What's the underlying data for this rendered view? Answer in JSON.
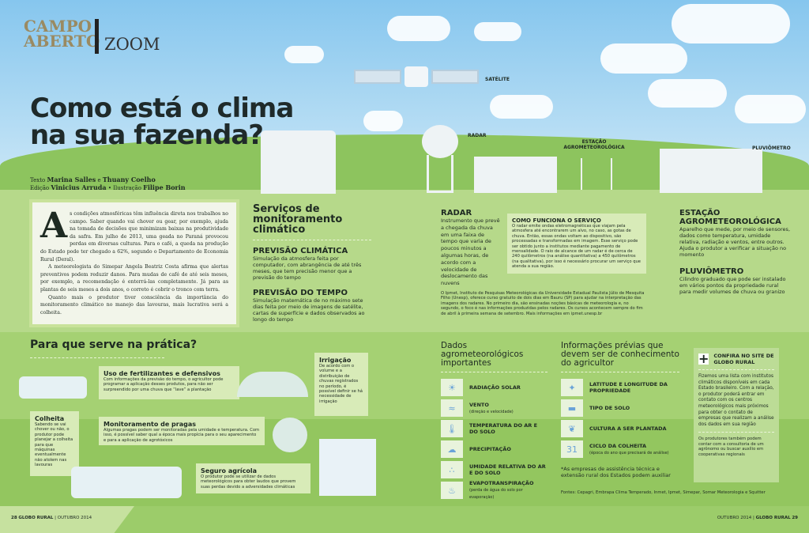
{
  "masthead": {
    "section_line1": "CAMPO",
    "section_line2": "ABERTO",
    "subsection": "ZOOM"
  },
  "headline": {
    "line1": "Como está o clima",
    "line2": "na sua fazenda?"
  },
  "credits": {
    "text_label": "Texto",
    "authors": "Marina Salles",
    "and": "e",
    "author2": "Thuany Coelho",
    "edit_label": "Edição",
    "editor": "Vinicius Arruda",
    "illus_label": "Ilustração",
    "illustrator": "Filipe Borin"
  },
  "illustration_labels": {
    "satellite": "SATÉLITE",
    "radar": "RADAR",
    "station": "ESTAÇÃO AGROMETEOROLÓGICA",
    "rain_gauge": "PLUVIÔMETRO"
  },
  "article": {
    "drop_cap": "A",
    "p1": "s condições atmosféricas têm influência direta nos trabalhos no campo. Saber quando vai chover ou gear, por exemplo, ajuda na tomada de decisões que minimizam baixas na produtividade da safra. Em julho de 2013, uma geada no Paraná provocou perdas em diversas culturas. Para o café, a queda na produção do Estado pode ter chegado a 62%, segundo o Departamento de Economia Rural (Deral).",
    "p2": "A meteorologista do Simepar Angela Beatriz Costa afirma que alertas preventivos podem reduzir danos. Para mudas de café de até seis meses, por exemplo, a recomendação é enterrá-las completamente. Já para as plantas de seis meses a dois anos, o correto é cobrir o tronco com terra.",
    "p3": "Quanto mais o produtor tiver consciência da importância do monitoramento climático no manejo das lavouras, mais lucrativa será a colheita."
  },
  "services": {
    "title": "Serviços de monitoramento climático",
    "items": [
      {
        "title": "PREVISÃO CLIMÁTICA",
        "text": "Simulação da atmosfera feita por computador, com abrangência de até três meses, que tem precisão menor que a previsão do tempo"
      },
      {
        "title": "PREVISÃO DO TEMPO",
        "text": "Simulação matemática de no máximo sete dias feita por meio de imagens de satélite, cartas de superfície e dados observados ao longo do tempo"
      }
    ]
  },
  "radar": {
    "title": "RADAR",
    "text": "Instrumento que prevê a chegada da chuva em uma faixa de tempo que varia de poucos minutos a algumas horas, de acordo com a velocidade de deslocamento das nuvens",
    "how_title": "COMO FUNCIONA O SERVIÇO",
    "how_text": "O radar emite ondas eletromagnéticas que viajam pela atmosfera até encontrarem um alvo, no caso, as gotas de chuva. Então, essas ondas voltam ao dispositivo, são processadas e transformadas em imagem. Esse serviço pode ser obtido junto a institutos mediante pagamento de mensalidade. O raio de alcance de um radar é de cerca de 240 quilômetros (na análise quantitativa) a 450 quilômetros (na qualitativa), por isso é necessário procurar um serviço que atenda a sua região.",
    "ipmet": "O Ipmet, Instituto de Pesquisas Meteorológicas da Universidade Estadual Paulista Júlio de Mesquita Filho (Unesp), oferece curso gratuito de dois dias em Bauru (SP) para ajudar na interpretação das imagens dos radares. No primeiro dia, são ensinadas noções básicas de meteorologia e, no segundo, o foco é nas informações produzidas pelos radares. Os cursos acontecem sempre do fim de abril à primeira semana de setembro. Mais informações em ipmet.unesp.br"
  },
  "station": {
    "title": "ESTAÇÃO AGROMETEOROLÓGICA",
    "text": "Aparelho que mede, por meio de sensores, dados como temperatura, umidade relativa, radiação e ventos, entre outros. Ajuda o produtor a verificar a situação no momento"
  },
  "gauge": {
    "title": "PLUVIÔMETRO",
    "text": "Cilindro graduado que pode ser instalado em vários pontos da propriedade rural para medir volumes de chuva ou granizo"
  },
  "practice": {
    "title": "Para que serve na prática?",
    "items": [
      {
        "title": "Uso de fertilizantes e defensivos",
        "text": "Com informações da previsão do tempo, o agricultor pode programar a aplicação desses produtos, para não ser surpreendido por uma chuva que “lave” a plantação"
      },
      {
        "title": "Irrigação",
        "text": "De acordo com o volume e a distribuição de chuvas registrados no período, é possível definir se há necessidade de irrigação"
      },
      {
        "title": "Colheita",
        "text": "Sabendo se vai chover ou não, o produtor pode planejar a colheita para que máquinas eventualmente não atolem nas lavouras"
      },
      {
        "title": "Monitoramento de pragas",
        "text": "Algumas pragas podem ser monitoradas pela umidade e temperatura. Com isso, é possível saber qual a época mais propícia para o seu aparecimento e para a aplicação de agrotóxicos"
      },
      {
        "title": "Seguro agrícola",
        "text": "O produtor pode se utilizar de dados meteorológicos para obter laudos que provem suas perdas devido a adversidades climáticas"
      }
    ]
  },
  "agro_data": {
    "title": "Dados agrometeorológicos importantes",
    "items": [
      {
        "label": "RADIAÇÃO SOLAR",
        "note": "",
        "icon": "sun-icon"
      },
      {
        "label": "VENTO",
        "note": "(direção e velocidade)",
        "icon": "wind-icon"
      },
      {
        "label": "TEMPERATURA DO AR E DO SOLO",
        "note": "",
        "icon": "thermometer-icon"
      },
      {
        "label": "PRECIPITAÇÃO",
        "note": "",
        "icon": "rain-cloud-icon"
      },
      {
        "label": "UMIDADE RELATIVA DO AR E DO SOLO",
        "note": "",
        "icon": "humidity-icon"
      },
      {
        "label": "EVAPOTRANSPIRAÇÃO",
        "note": "(perda de água do solo por evaporação)",
        "icon": "evaporation-icon"
      }
    ]
  },
  "prior_info": {
    "title": "Informações prévias que devem ser de conhecimento do agricultor",
    "items": [
      {
        "label": "LATITUDE E LONGITUDE DA PROPRIEDADE",
        "note": "",
        "icon": "location-icon"
      },
      {
        "label": "TIPO DE SOLO",
        "note": "",
        "icon": "soil-icon"
      },
      {
        "label": "CULTURA A SER PLANTADA",
        "note": "",
        "icon": "plant-icon"
      },
      {
        "label": "CICLO DA COLHEITA",
        "note": "(época do ano que precisará de análise)",
        "icon": "calendar-icon"
      }
    ],
    "footnote": "*As empresas de assistência técnica e extensão rural dos Estados podem auxiliar",
    "sources": "Fontes: Cepagri, Embrapa Clima Temperado, Inmet, Ipmet, Simepar, Somar Meteorologia e Squitter"
  },
  "site_box": {
    "plus": "+",
    "title": "CONFIRA NO SITE DE GLOBO RURAL",
    "text": "Fizemos uma lista com institutos climáticos disponíveis em cada Estado brasileiro. Com a relação, o produtor poderá entrar em contato com os centros meteorológicos mais próximos para obter o contato de empresas que realizam a análise dos dados em sua região",
    "note": "Os produtores também podem contar com a consultoria de um agrônomo ou buscar auxílio em cooperativas regionais"
  },
  "calendar_day": "31",
  "footer": {
    "left_page": "28",
    "left_brand": "GLOBO RURAL",
    "left_date": "OUTUBRO 2014",
    "right_date": "OUTUBRO 2014",
    "right_brand": "GLOBO RURAL",
    "right_page": "29"
  }
}
